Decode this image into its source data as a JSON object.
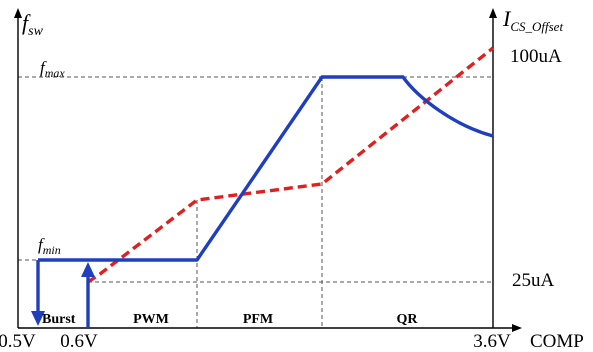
{
  "colors": {
    "axis": "#000000",
    "frequency_curve": "#1f3fbf",
    "offset_curve": "#e0201e",
    "guide": "#555555"
  },
  "left_axis": {
    "symbol": "f",
    "subscript": "sw"
  },
  "right_axis": {
    "symbol": "I",
    "subscript": "CS_Offset"
  },
  "levels": {
    "fmax": {
      "symbol": "f",
      "subscript": "max"
    },
    "fmin": {
      "symbol": "f",
      "subscript": "min"
    },
    "current_high": "100uA",
    "current_low": "25uA"
  },
  "x_ticks": {
    "v05": "0.5V",
    "v06": "0.6V",
    "v36": "3.6V",
    "x_label": "COMP"
  },
  "regions": {
    "burst": "Burst",
    "pwm": "PWM",
    "pfm": "PFM",
    "qr": "QR"
  }
}
